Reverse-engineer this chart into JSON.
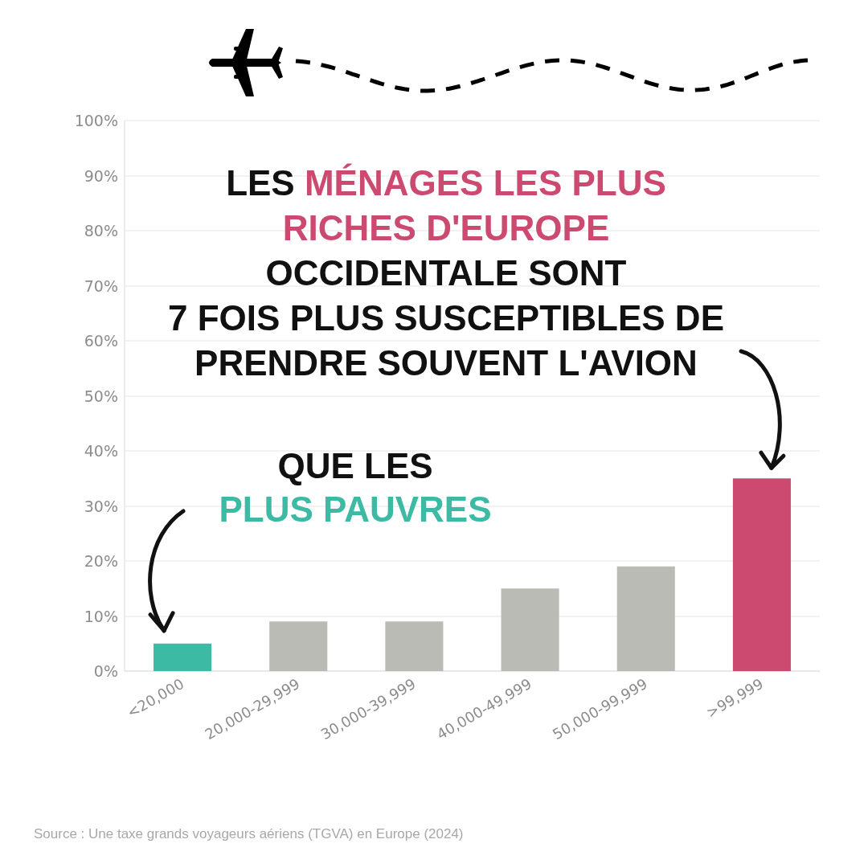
{
  "chart_data": {
    "type": "bar",
    "categories": [
      "<20,000",
      "20,000-29,999",
      "30,000-39,999",
      "40,000-49,999",
      "50,000-99,999",
      ">99,999"
    ],
    "values": [
      5,
      9,
      9,
      15,
      19,
      35
    ],
    "colors": [
      "#3dbaa4",
      "#bbbbb6",
      "#bbbbb6",
      "#bbbbb6",
      "#bbbbb6",
      "#cc4a70"
    ],
    "ylim": [
      0,
      100
    ],
    "yticks": [
      {
        "value": 0,
        "label": "0%"
      },
      {
        "value": 10,
        "label": "10%"
      },
      {
        "value": 20,
        "label": "20%"
      },
      {
        "value": 30,
        "label": "30%"
      },
      {
        "value": 40,
        "label": "40%"
      },
      {
        "value": 50,
        "label": "50%"
      },
      {
        "value": 60,
        "label": "60%"
      },
      {
        "value": 70,
        "label": "70%"
      },
      {
        "value": 80,
        "label": "80%"
      },
      {
        "value": 90,
        "label": "90%"
      },
      {
        "value": 100,
        "label": "100%"
      }
    ],
    "grid": "y",
    "annotations": [
      "LES MÉNAGES LES PLUS RICHES D'EUROPE OCCIDENTALE SONT 7 FOIS PLUS SUSCEPTIBLES DE PRENDRE SOUVENT L'AVION",
      "QUE LES PLUS PAUVRES",
      "Source : Une taxe grands voyageurs aériens (TGVA) en Europe (2024)"
    ]
  }
}
